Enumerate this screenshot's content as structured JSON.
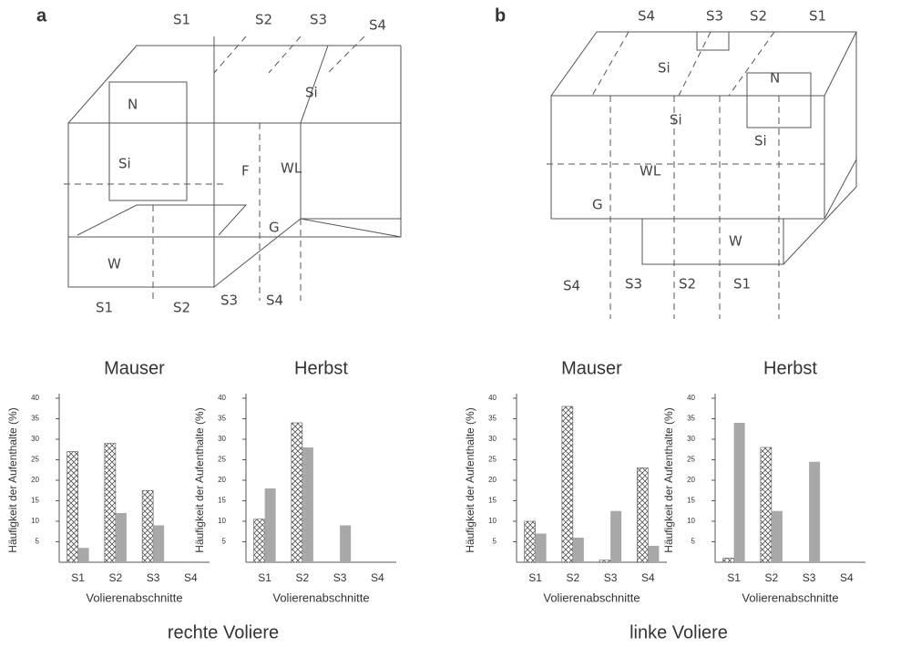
{
  "panels": {
    "a": {
      "label": "a",
      "caption": "rechte Voliere",
      "top": [
        "S1",
        "S2",
        "S3",
        "S4"
      ],
      "bottom": [
        "S1",
        "S2",
        "S3",
        "S4"
      ],
      "marks": [
        "N",
        "Si",
        "Si",
        "F",
        "WL",
        "G",
        "W"
      ]
    },
    "b": {
      "label": "b",
      "caption": "linke Voliere",
      "top": [
        "S4",
        "S3",
        "S2",
        "S1"
      ],
      "bottom": [
        "S4",
        "S3",
        "S2",
        "S1"
      ],
      "marks": [
        "N",
        "Si",
        "Si",
        "Si",
        "WL",
        "G",
        "W"
      ]
    }
  },
  "chart_data": [
    {
      "type": "bar",
      "title": "Mauser",
      "y_label": "Häufigkeit der Aufenthalte (%)",
      "x_label": "Volierenabschnitte",
      "categories": [
        "S1",
        "S2",
        "S3",
        "S4"
      ],
      "ylim": [
        0,
        40
      ],
      "yticks": [
        5,
        10,
        15,
        20,
        25,
        30,
        35,
        40
      ],
      "series": [
        {
          "color": "#555555",
          "hatch": true,
          "values": [
            27,
            29,
            17.5,
            0
          ]
        },
        {
          "color": "#a8a8a8",
          "values": [
            3.5,
            12,
            9,
            0
          ]
        }
      ]
    },
    {
      "type": "bar",
      "title": "Herbst",
      "y_label": "Häufigkeit der Aufenthalte (%)",
      "x_label": "Volierenabschnitte",
      "categories": [
        "S1",
        "S2",
        "S3",
        "S4"
      ],
      "ylim": [
        0,
        40
      ],
      "yticks": [
        5,
        10,
        15,
        20,
        25,
        30,
        35,
        40
      ],
      "series": [
        {
          "color": "#555555",
          "hatch": true,
          "values": [
            10.5,
            34,
            0,
            0
          ]
        },
        {
          "color": "#a8a8a8",
          "values": [
            18,
            28,
            9,
            0
          ]
        }
      ]
    },
    {
      "type": "bar",
      "title": "Mauser",
      "y_label": "Häufigkeit der Aufenthalte (%)",
      "x_label": "Volierenabschnitte",
      "categories": [
        "S1",
        "S2",
        "S3",
        "S4"
      ],
      "ylim": [
        0,
        40
      ],
      "yticks": [
        5,
        10,
        15,
        20,
        25,
        30,
        35,
        40
      ],
      "series": [
        {
          "color": "#555555",
          "hatch": true,
          "values": [
            10,
            38,
            0.5,
            23
          ]
        },
        {
          "color": "#a8a8a8",
          "values": [
            7,
            6,
            12.5,
            4
          ]
        }
      ]
    },
    {
      "type": "bar",
      "title": "Herbst",
      "y_label": "Häufigkeit der Aufenthalte (%)",
      "x_label": "Volierenabschnitte",
      "categories": [
        "S1",
        "S2",
        "S3",
        "S4"
      ],
      "ylim": [
        0,
        40
      ],
      "yticks": [
        5,
        10,
        15,
        20,
        25,
        30,
        35,
        40
      ],
      "series": [
        {
          "color": "#555555",
          "hatch": true,
          "values": [
            1,
            28,
            0,
            0
          ]
        },
        {
          "color": "#a8a8a8",
          "values": [
            34,
            12.5,
            24.5,
            0
          ]
        }
      ]
    }
  ]
}
